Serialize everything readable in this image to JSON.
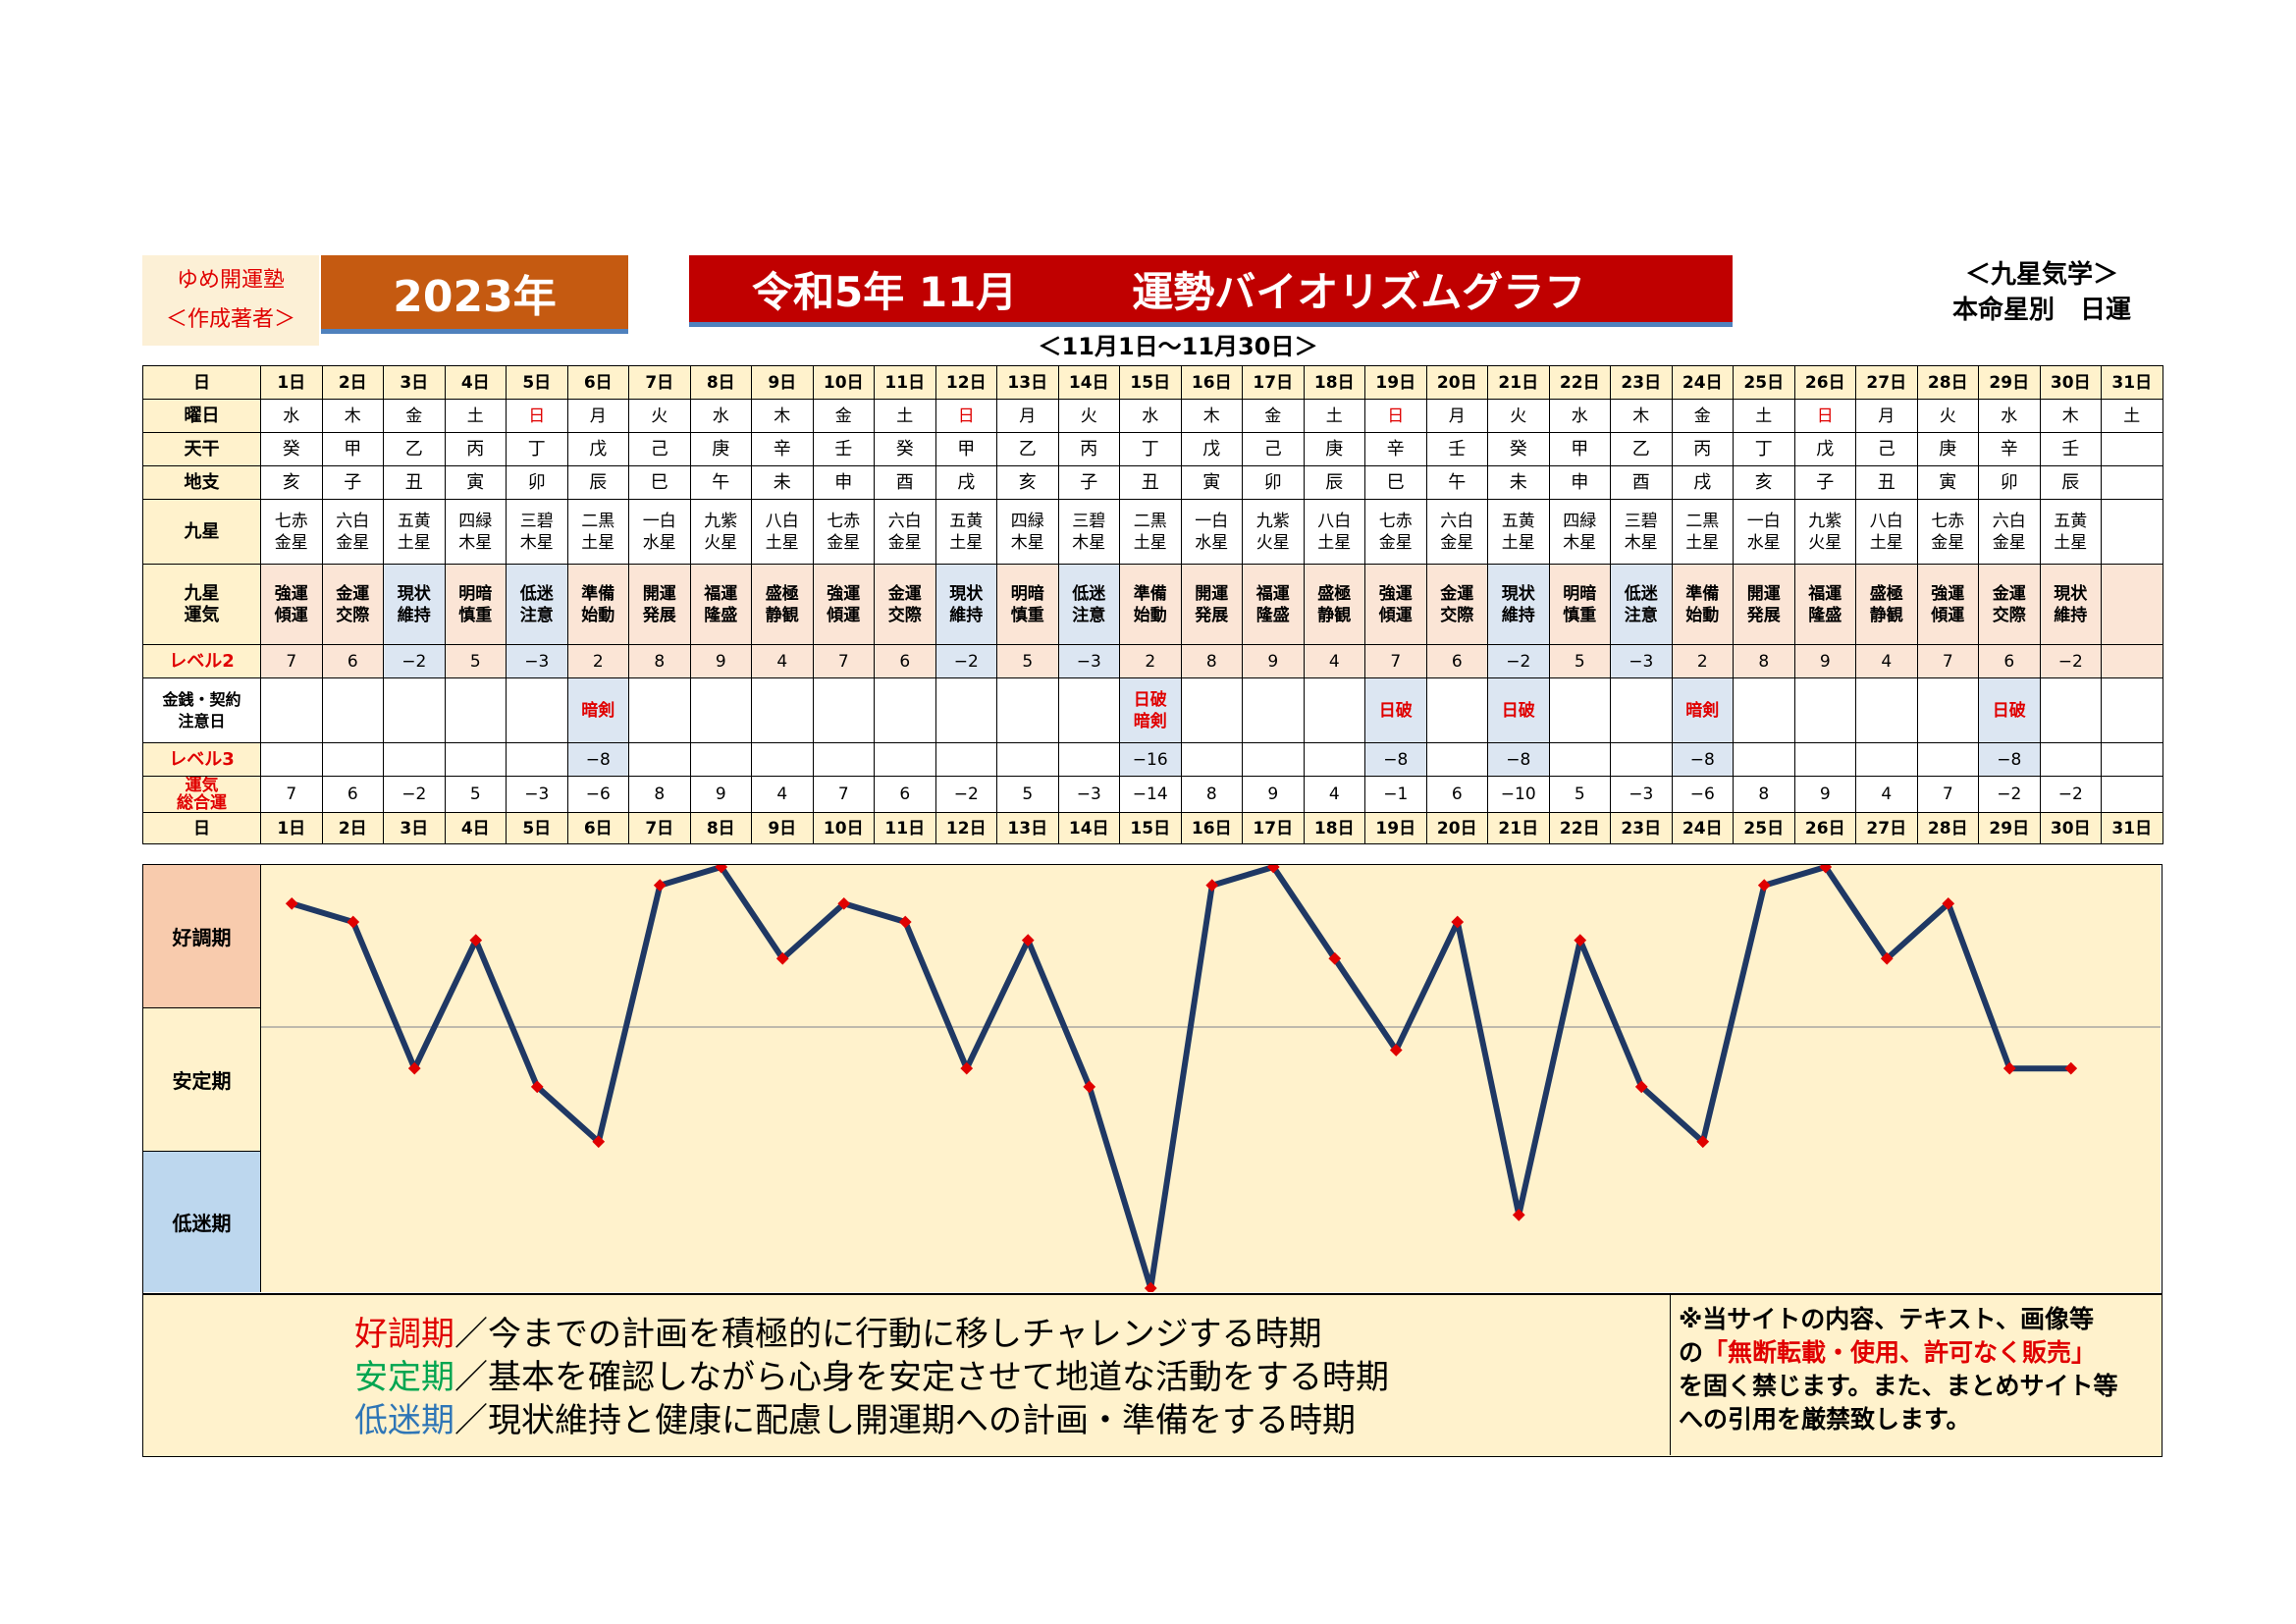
{
  "header": {
    "author_name": "ゆめ開運塾",
    "author_role": "＜作成著者＞",
    "year": "2023年",
    "title_date": "令和5年 11月",
    "title_main": "運勢バイオリズムグラフ",
    "corner_line1": "＜九星気学＞",
    "corner_line2": "本命星別　日運",
    "range": "＜11月1日～11月30日＞"
  },
  "row_labels": {
    "day": "日",
    "weekday": "曜日",
    "tenkan": "天干",
    "chishi": "地支",
    "kyusei": "九星",
    "kyusei_unki_1": "九星",
    "kyusei_unki_2": "運気",
    "level2": "レベル2",
    "caution_1": "金銭・契約",
    "caution_2": "注意日",
    "level3": "レベル3",
    "total_1": "運気",
    "total_2": "総合運"
  },
  "days": [
    "1日",
    "2日",
    "3日",
    "4日",
    "5日",
    "6日",
    "7日",
    "8日",
    "9日",
    "10日",
    "11日",
    "12日",
    "13日",
    "14日",
    "15日",
    "16日",
    "17日",
    "18日",
    "19日",
    "20日",
    "21日",
    "22日",
    "23日",
    "24日",
    "25日",
    "26日",
    "27日",
    "28日",
    "29日",
    "30日",
    "31日"
  ],
  "weekdays": [
    "水",
    "木",
    "金",
    "土",
    "日",
    "月",
    "火",
    "水",
    "木",
    "金",
    "土",
    "日",
    "月",
    "火",
    "水",
    "木",
    "金",
    "土",
    "日",
    "月",
    "火",
    "水",
    "木",
    "金",
    "土",
    "日",
    "月",
    "火",
    "水",
    "木",
    "土"
  ],
  "tenkan": [
    "癸",
    "甲",
    "乙",
    "丙",
    "丁",
    "戊",
    "己",
    "庚",
    "辛",
    "壬",
    "癸",
    "甲",
    "乙",
    "丙",
    "丁",
    "戊",
    "己",
    "庚",
    "辛",
    "壬",
    "癸",
    "甲",
    "乙",
    "丙",
    "丁",
    "戊",
    "己",
    "庚",
    "辛",
    "壬",
    ""
  ],
  "chishi": [
    "亥",
    "子",
    "丑",
    "寅",
    "卯",
    "辰",
    "巳",
    "午",
    "未",
    "申",
    "酉",
    "戌",
    "亥",
    "子",
    "丑",
    "寅",
    "卯",
    "辰",
    "巳",
    "午",
    "未",
    "申",
    "酉",
    "戌",
    "亥",
    "子",
    "丑",
    "寅",
    "卯",
    "辰",
    ""
  ],
  "kyusei": [
    [
      "七赤",
      "金星"
    ],
    [
      "六白",
      "金星"
    ],
    [
      "五黄",
      "土星"
    ],
    [
      "四緑",
      "木星"
    ],
    [
      "三碧",
      "木星"
    ],
    [
      "二黒",
      "土星"
    ],
    [
      "一白",
      "水星"
    ],
    [
      "九紫",
      "火星"
    ],
    [
      "八白",
      "土星"
    ],
    [
      "七赤",
      "金星"
    ],
    [
      "六白",
      "金星"
    ],
    [
      "五黄",
      "土星"
    ],
    [
      "四緑",
      "木星"
    ],
    [
      "三碧",
      "木星"
    ],
    [
      "二黒",
      "土星"
    ],
    [
      "一白",
      "水星"
    ],
    [
      "九紫",
      "火星"
    ],
    [
      "八白",
      "土星"
    ],
    [
      "七赤",
      "金星"
    ],
    [
      "六白",
      "金星"
    ],
    [
      "五黄",
      "土星"
    ],
    [
      "四緑",
      "木星"
    ],
    [
      "三碧",
      "木星"
    ],
    [
      "二黒",
      "土星"
    ],
    [
      "一白",
      "水星"
    ],
    [
      "九紫",
      "火星"
    ],
    [
      "八白",
      "土星"
    ],
    [
      "七赤",
      "金星"
    ],
    [
      "六白",
      "金星"
    ],
    [
      "五黄",
      "土星"
    ],
    [
      "",
      ""
    ]
  ],
  "kyusei_unki": [
    [
      "強運",
      "傾運"
    ],
    [
      "金運",
      "交際"
    ],
    [
      "現状",
      "維持"
    ],
    [
      "明暗",
      "慎重"
    ],
    [
      "低迷",
      "注意"
    ],
    [
      "準備",
      "始動"
    ],
    [
      "開運",
      "発展"
    ],
    [
      "福運",
      "隆盛"
    ],
    [
      "盛極",
      "静観"
    ],
    [
      "強運",
      "傾運"
    ],
    [
      "金運",
      "交際"
    ],
    [
      "現状",
      "維持"
    ],
    [
      "明暗",
      "慎重"
    ],
    [
      "低迷",
      "注意"
    ],
    [
      "準備",
      "始動"
    ],
    [
      "開運",
      "発展"
    ],
    [
      "福運",
      "隆盛"
    ],
    [
      "盛極",
      "静観"
    ],
    [
      "強運",
      "傾運"
    ],
    [
      "金運",
      "交際"
    ],
    [
      "現状",
      "維持"
    ],
    [
      "明暗",
      "慎重"
    ],
    [
      "低迷",
      "注意"
    ],
    [
      "準備",
      "始動"
    ],
    [
      "開運",
      "発展"
    ],
    [
      "福運",
      "隆盛"
    ],
    [
      "盛極",
      "静観"
    ],
    [
      "強運",
      "傾運"
    ],
    [
      "金運",
      "交際"
    ],
    [
      "現状",
      "維持"
    ],
    [
      "",
      ""
    ]
  ],
  "level2": [
    "7",
    "6",
    "−2",
    "5",
    "−3",
    "2",
    "8",
    "9",
    "4",
    "7",
    "6",
    "−2",
    "5",
    "−3",
    "2",
    "8",
    "9",
    "4",
    "7",
    "6",
    "−2",
    "5",
    "−3",
    "2",
    "8",
    "9",
    "4",
    "7",
    "6",
    "−2",
    ""
  ],
  "caution": [
    [
      "",
      ""
    ],
    [
      "",
      ""
    ],
    [
      "",
      ""
    ],
    [
      "",
      ""
    ],
    [
      "",
      ""
    ],
    [
      "暗剣",
      ""
    ],
    [
      "",
      ""
    ],
    [
      "",
      ""
    ],
    [
      "",
      ""
    ],
    [
      "",
      ""
    ],
    [
      "",
      ""
    ],
    [
      "",
      ""
    ],
    [
      "",
      ""
    ],
    [
      "",
      ""
    ],
    [
      "日破",
      "暗剣"
    ],
    [
      "",
      ""
    ],
    [
      "",
      ""
    ],
    [
      "",
      ""
    ],
    [
      "日破",
      ""
    ],
    [
      "",
      ""
    ],
    [
      "日破",
      ""
    ],
    [
      "",
      ""
    ],
    [
      "",
      ""
    ],
    [
      "暗剣",
      ""
    ],
    [
      "",
      ""
    ],
    [
      "",
      ""
    ],
    [
      "",
      ""
    ],
    [
      "",
      ""
    ],
    [
      "日破",
      ""
    ],
    [
      "",
      ""
    ],
    [
      "",
      ""
    ]
  ],
  "level3": [
    "",
    "",
    "",
    "",
    "",
    "−8",
    "",
    "",
    "",
    "",
    "",
    "",
    "",
    "",
    "−16",
    "",
    "",
    "",
    "−8",
    "",
    "−8",
    "",
    "",
    "−8",
    "",
    "",
    "",
    "",
    "−8",
    "",
    ""
  ],
  "total": [
    "7",
    "6",
    "−2",
    "5",
    "−3",
    "−6",
    "8",
    "9",
    "4",
    "7",
    "6",
    "−2",
    "5",
    "−3",
    "−14",
    "8",
    "9",
    "4",
    "−1",
    "6",
    "−10",
    "5",
    "−3",
    "−6",
    "8",
    "9",
    "4",
    "7",
    "−2",
    "−2",
    ""
  ],
  "zones": [
    "好調期",
    "安定期",
    "低迷期"
  ],
  "chart_data": {
    "type": "line",
    "x": [
      1,
      2,
      3,
      4,
      5,
      6,
      7,
      8,
      9,
      10,
      11,
      12,
      13,
      14,
      15,
      16,
      17,
      18,
      19,
      20,
      21,
      22,
      23,
      24,
      25,
      26,
      27,
      28,
      29,
      30
    ],
    "values": [
      7,
      6,
      -2,
      5,
      -3,
      -6,
      8,
      9,
      4,
      7,
      6,
      -2,
      5,
      -3,
      -14,
      8,
      9,
      4,
      -1,
      6,
      -10,
      5,
      -3,
      -6,
      8,
      9,
      4,
      7,
      -2,
      -2
    ],
    "ylim": [
      -14,
      9
    ],
    "line_color": "#1f3864",
    "marker_color": "#e00000"
  },
  "legend": [
    {
      "term": "好調期",
      "text": "／今までの計画を積極的に行動に移しチャレンジする時期",
      "color": "#e00000"
    },
    {
      "term": "安定期",
      "text": "／基本を確認しながら心身を安定させて地道な活動をする時期",
      "color": "#00a550"
    },
    {
      "term": "低迷期",
      "text": "／現状維持と健康に配慮し開運期への計画・準備をする時期",
      "color": "#2e75b6"
    }
  ],
  "notice": {
    "line1": "※当サイトの内容、テキスト、画像等",
    "line2_pre": "の",
    "line2_red": "「無断転載・使用、許可なく販売」",
    "line3": "を固く禁じます。また、まとめサイト等",
    "line4": "への引用を厳禁致します。"
  }
}
